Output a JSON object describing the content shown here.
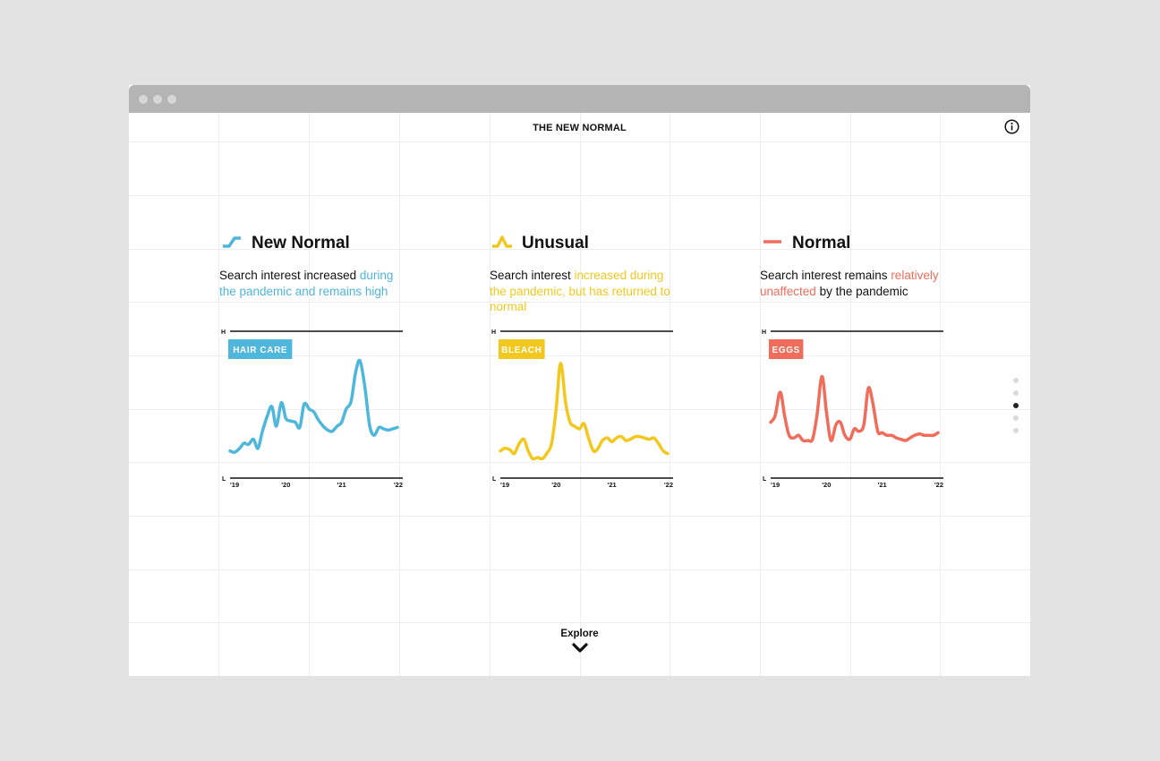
{
  "window": {
    "controls": [
      "close",
      "minimize",
      "maximize"
    ]
  },
  "header": {
    "title": "THE NEW NORMAL",
    "info_icon": "info-circle-icon"
  },
  "panels": [
    {
      "id": "new-normal",
      "title": "New Normal",
      "icon": "step-up-line-icon",
      "color": "#4fb6dc",
      "desc_plain_1": "Search interest increased ",
      "desc_highlight": "during the pandemic and remains high",
      "desc_plain_2": ""
    },
    {
      "id": "unusual",
      "title": "Unusual",
      "icon": "spike-line-icon",
      "color": "#f2c81e",
      "desc_plain_1": "Search interest ",
      "desc_highlight": "increased during the pandemic, but has returned to normal",
      "desc_plain_2": ""
    },
    {
      "id": "normal",
      "title": "Normal",
      "icon": "flat-line-icon",
      "color": "#f06c5b",
      "desc_plain_1": "Search interest remains ",
      "desc_highlight": "relatively unaffected",
      "desc_plain_2": " by the pandemic"
    }
  ],
  "pagination": {
    "count": 5,
    "active": 2
  },
  "explore": {
    "label": "Explore",
    "icon": "chevron-down-icon"
  },
  "chart_data": [
    {
      "type": "line",
      "series": [
        {
          "name": "HAIR CARE",
          "x": [
            2019.0,
            2019.08,
            2019.17,
            2019.25,
            2019.33,
            2019.42,
            2019.5,
            2019.58,
            2019.67,
            2019.75,
            2019.83,
            2019.92,
            2020.0,
            2020.08,
            2020.17,
            2020.25,
            2020.33,
            2020.42,
            2020.5,
            2020.58,
            2020.67,
            2020.75,
            2020.83,
            2020.92,
            2021.0,
            2021.08,
            2021.17,
            2021.25,
            2021.33,
            2021.42,
            2021.5,
            2021.58,
            2021.67,
            2021.75,
            2021.83,
            2021.92,
            2022.0
          ],
          "values": [
            18,
            17,
            20,
            24,
            23,
            27,
            20,
            33,
            45,
            52,
            37,
            55,
            43,
            41,
            40,
            36,
            54,
            50,
            48,
            42,
            37,
            34,
            33,
            37,
            40,
            50,
            56,
            78,
            87,
            66,
            38,
            30,
            36,
            35,
            34,
            35,
            36
          ]
        }
      ],
      "ylabel_top": "H",
      "ylabel_bottom": "L",
      "xticks": [
        "'19",
        "'20",
        "'21",
        "'22"
      ],
      "xlim": [
        2019,
        2022
      ],
      "ylim": [
        0,
        100
      ]
    },
    {
      "type": "line",
      "series": [
        {
          "name": "BLEACH",
          "x": [
            2019.0,
            2019.08,
            2019.17,
            2019.25,
            2019.33,
            2019.42,
            2019.5,
            2019.58,
            2019.67,
            2019.75,
            2019.83,
            2019.92,
            2020.0,
            2020.08,
            2020.17,
            2020.25,
            2020.33,
            2020.42,
            2020.5,
            2020.58,
            2020.67,
            2020.75,
            2020.83,
            2020.92,
            2021.0,
            2021.08,
            2021.17,
            2021.25,
            2021.33,
            2021.42,
            2021.5,
            2021.58,
            2021.67,
            2021.75,
            2021.83,
            2021.92,
            2022.0
          ],
          "values": [
            18,
            20,
            19,
            16,
            23,
            27,
            18,
            12,
            13,
            12,
            16,
            24,
            50,
            85,
            55,
            40,
            37,
            35,
            39,
            28,
            18,
            20,
            26,
            28,
            25,
            28,
            29,
            26,
            27,
            29,
            29,
            28,
            27,
            28,
            24,
            18,
            16
          ]
        }
      ],
      "ylabel_top": "H",
      "ylabel_bottom": "L",
      "xticks": [
        "'19",
        "'20",
        "'21",
        "'22"
      ],
      "xlim": [
        2019,
        2022
      ],
      "ylim": [
        0,
        100
      ]
    },
    {
      "type": "line",
      "series": [
        {
          "name": "EGGS",
          "x": [
            2019.0,
            2019.08,
            2019.17,
            2019.25,
            2019.33,
            2019.42,
            2019.5,
            2019.58,
            2019.67,
            2019.75,
            2019.83,
            2019.92,
            2020.0,
            2020.08,
            2020.17,
            2020.25,
            2020.33,
            2020.42,
            2020.5,
            2020.58,
            2020.67,
            2020.75,
            2020.83,
            2020.92,
            2021.0,
            2021.08,
            2021.17,
            2021.25,
            2021.33,
            2021.42,
            2021.5,
            2021.58,
            2021.67,
            2021.75,
            2021.83,
            2021.92,
            2022.0
          ],
          "values": [
            40,
            45,
            63,
            45,
            30,
            28,
            30,
            26,
            26,
            27,
            45,
            75,
            48,
            26,
            38,
            40,
            30,
            27,
            35,
            33,
            38,
            66,
            55,
            33,
            32,
            30,
            30,
            28,
            27,
            26,
            28,
            30,
            31,
            30,
            30,
            30,
            32
          ]
        }
      ],
      "ylabel_top": "H",
      "ylabel_bottom": "L",
      "xticks": [
        "'19",
        "'20",
        "'21",
        "'22"
      ],
      "xlim": [
        2019,
        2022
      ],
      "ylim": [
        0,
        100
      ]
    }
  ]
}
